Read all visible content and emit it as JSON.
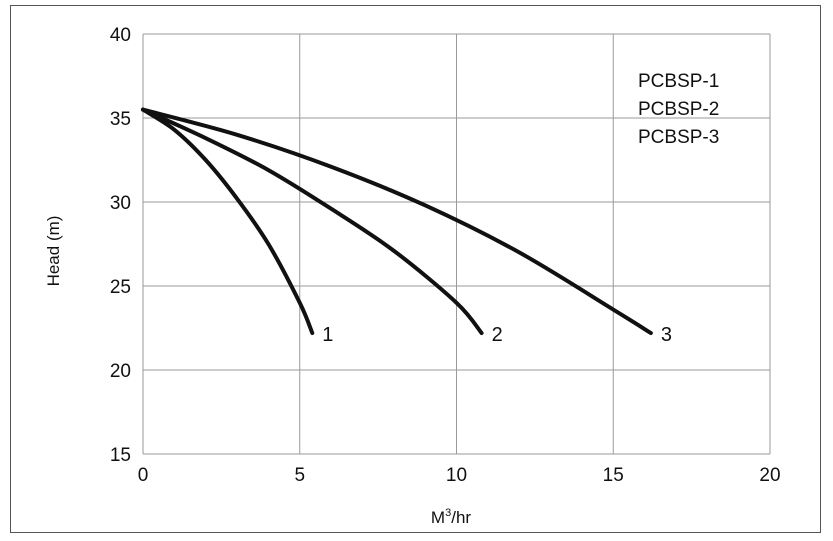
{
  "chart_data": {
    "type": "line",
    "title": "",
    "xlabel": "M³/hr",
    "xlabel_base": "M",
    "xlabel_sup": "3",
    "xlabel_tail": "/hr",
    "ylabel": "Head (m)",
    "xlim": [
      0,
      20
    ],
    "ylim": [
      15,
      40
    ],
    "xticks": [
      0,
      5,
      10,
      15,
      20
    ],
    "yticks": [
      15,
      20,
      25,
      30,
      35,
      40
    ],
    "grid": true,
    "legend": {
      "placement": "top-right",
      "entries": [
        "PCBSP-1",
        "PCBSP-2",
        "PCBSP-3"
      ]
    },
    "series": [
      {
        "name": "1",
        "x": [
          0,
          1,
          2,
          3,
          4,
          5,
          5.4
        ],
        "y": [
          35.5,
          34.3,
          32.5,
          30.2,
          27.5,
          24.0,
          22.2
        ]
      },
      {
        "name": "2",
        "x": [
          0,
          2,
          4,
          6,
          8,
          10,
          10.8
        ],
        "y": [
          35.5,
          33.8,
          31.9,
          29.6,
          27.1,
          24.0,
          22.2
        ]
      },
      {
        "name": "3",
        "x": [
          0,
          3,
          6,
          9,
          12,
          15,
          16.2
        ],
        "y": [
          35.5,
          34.0,
          32.1,
          29.8,
          27.0,
          23.6,
          22.2
        ]
      }
    ]
  }
}
